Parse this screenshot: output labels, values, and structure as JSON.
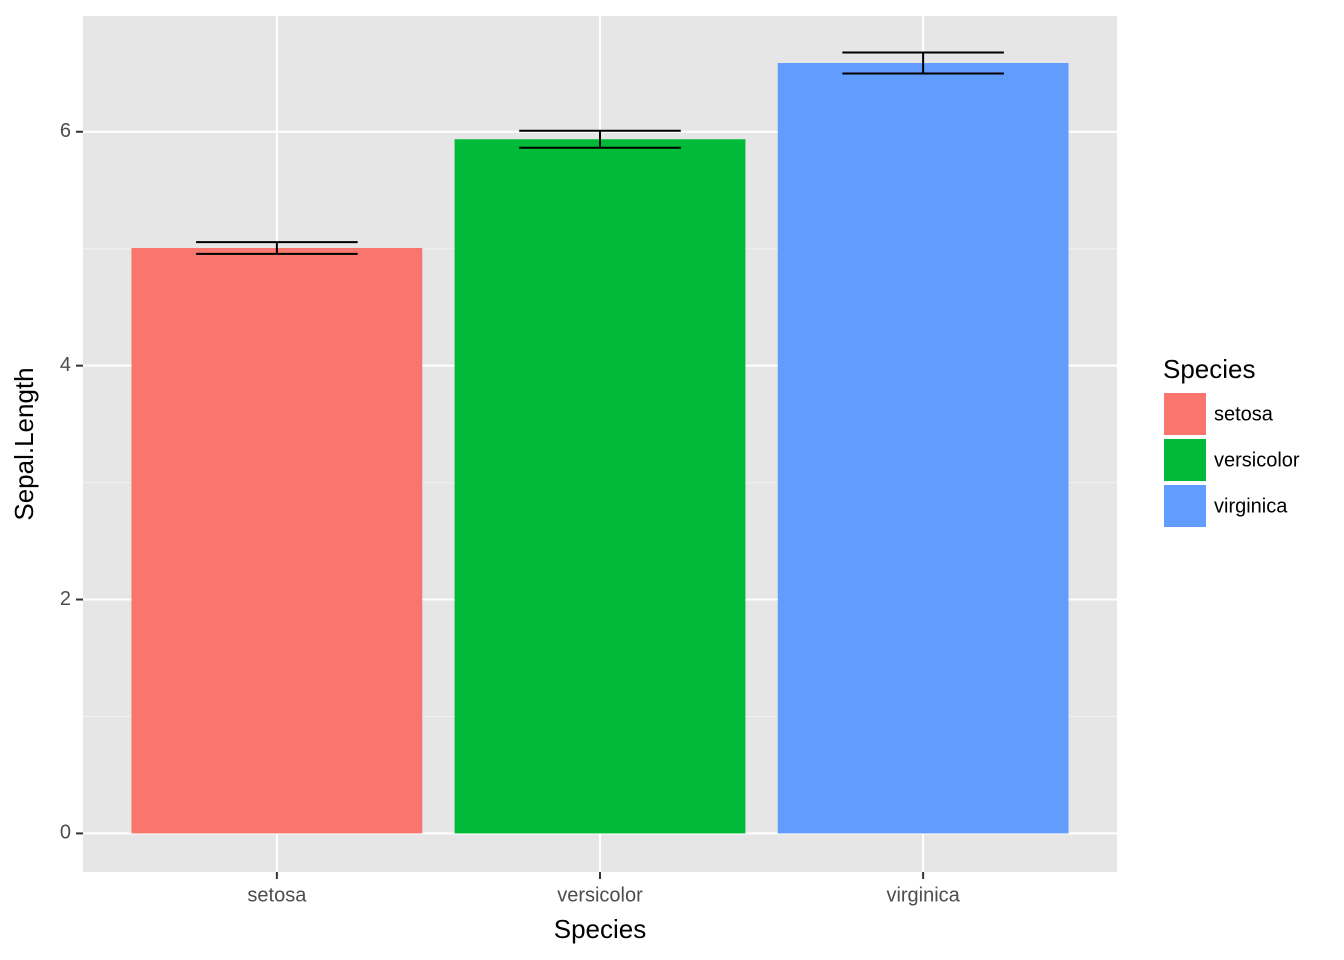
{
  "chart_data": {
    "type": "bar",
    "x_label": "Species",
    "y_label": "Sepal.Length",
    "categories": [
      "setosa",
      "versicolor",
      "virginica"
    ],
    "values": [
      5.006,
      5.936,
      6.588
    ],
    "errors": [
      0.05,
      0.073,
      0.09
    ],
    "colors": [
      "#f8766d",
      "#00ba38",
      "#619cff"
    ],
    "ylim": [
      -0.33,
      6.99
    ],
    "yticks": [
      0,
      2,
      4,
      6
    ],
    "y_minor_ticks": [
      1,
      3,
      5
    ],
    "grid": true,
    "legend_title": "Species",
    "legend_position": "right"
  }
}
